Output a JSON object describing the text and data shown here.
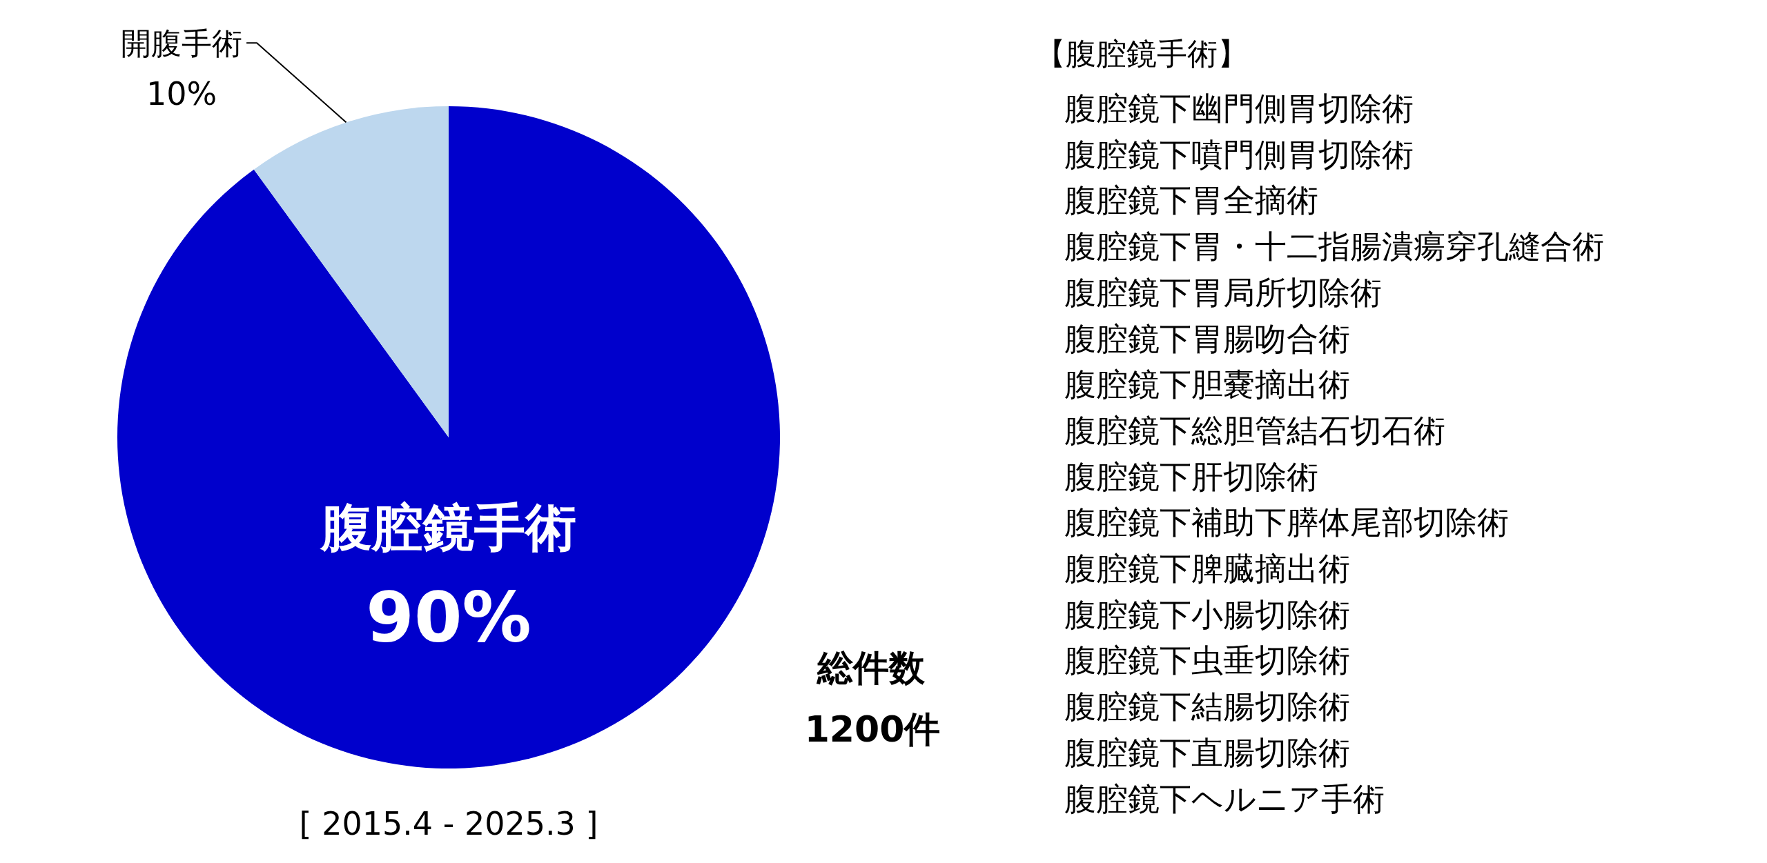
{
  "chart_data": {
    "type": "pie",
    "categories": [
      "腹腔鏡手術",
      "開腹手術"
    ],
    "values": [
      90,
      10
    ],
    "colors": [
      "#0000cc",
      "#bdd7ee"
    ],
    "value_labels": [
      "90%",
      "10%"
    ],
    "annotations": [
      "総件数",
      "1200件",
      "[ 2015.4 - 2025.3 ]",
      "【腹腔鏡手術】",
      "腹腔鏡下幽門側胃切除術",
      "腹腔鏡下噴門側胃切除術",
      "腹腔鏡下胃全摘術",
      "腹腔鏡下胃・十二指腸潰瘍穿孔縫合術",
      "腹腔鏡下胃局所切除術",
      "腹腔鏡下胃腸吻合術",
      "腹腔鏡下胆嚢摘出術",
      "腹腔鏡下総胆管結石切石術",
      "腹腔鏡下肝切除術",
      "腹腔鏡下補助下膵体尾部切除術",
      "腹腔鏡下脾臓摘出術",
      "腹腔鏡下小腸切除術",
      "腹腔鏡下虫垂切除術",
      "腹腔鏡下結腸切除術",
      "腹腔鏡下直腸切除術",
      "腹腔鏡下ヘルニア手術"
    ]
  }
}
